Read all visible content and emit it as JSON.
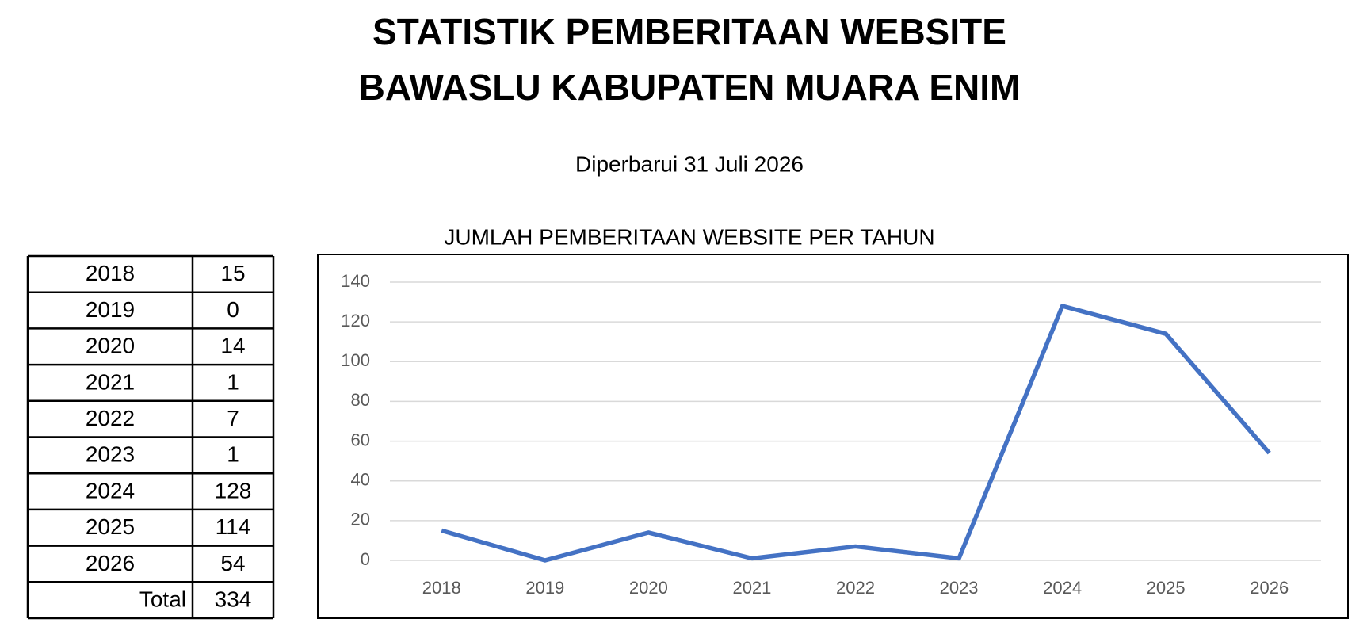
{
  "header": {
    "title_line1": "STATISTIK PEMBERITAAN WEBSITE",
    "title_line2": "BAWASLU KABUPATEN MUARA ENIM",
    "subtitle": "Diperbarui 31 Juli 2026"
  },
  "table": {
    "rows": [
      [
        "2018",
        15
      ],
      [
        "2019",
        0
      ],
      [
        "2020",
        14
      ],
      [
        "2021",
        1
      ],
      [
        "2022",
        7
      ],
      [
        "2023",
        1
      ],
      [
        "2024",
        128
      ],
      [
        "2025",
        114
      ],
      [
        "2026",
        54
      ],
      [
        "Total",
        334
      ]
    ]
  },
  "chart_data": {
    "type": "line",
    "title": "JUMLAH PEMBERITAAN WEBSITE PER TAHUN",
    "categories": [
      "2018",
      "2019",
      "2020",
      "2021",
      "2022",
      "2023",
      "2024",
      "2025",
      "2026"
    ],
    "series": [
      {
        "color": "#4472c4",
        "values": [
          15,
          0,
          14,
          1,
          7,
          1,
          128,
          114,
          54
        ]
      }
    ],
    "ylim": [
      0,
      140
    ],
    "yticks": [
      0,
      20,
      40,
      60,
      80,
      100,
      120,
      140
    ],
    "grid": true
  }
}
